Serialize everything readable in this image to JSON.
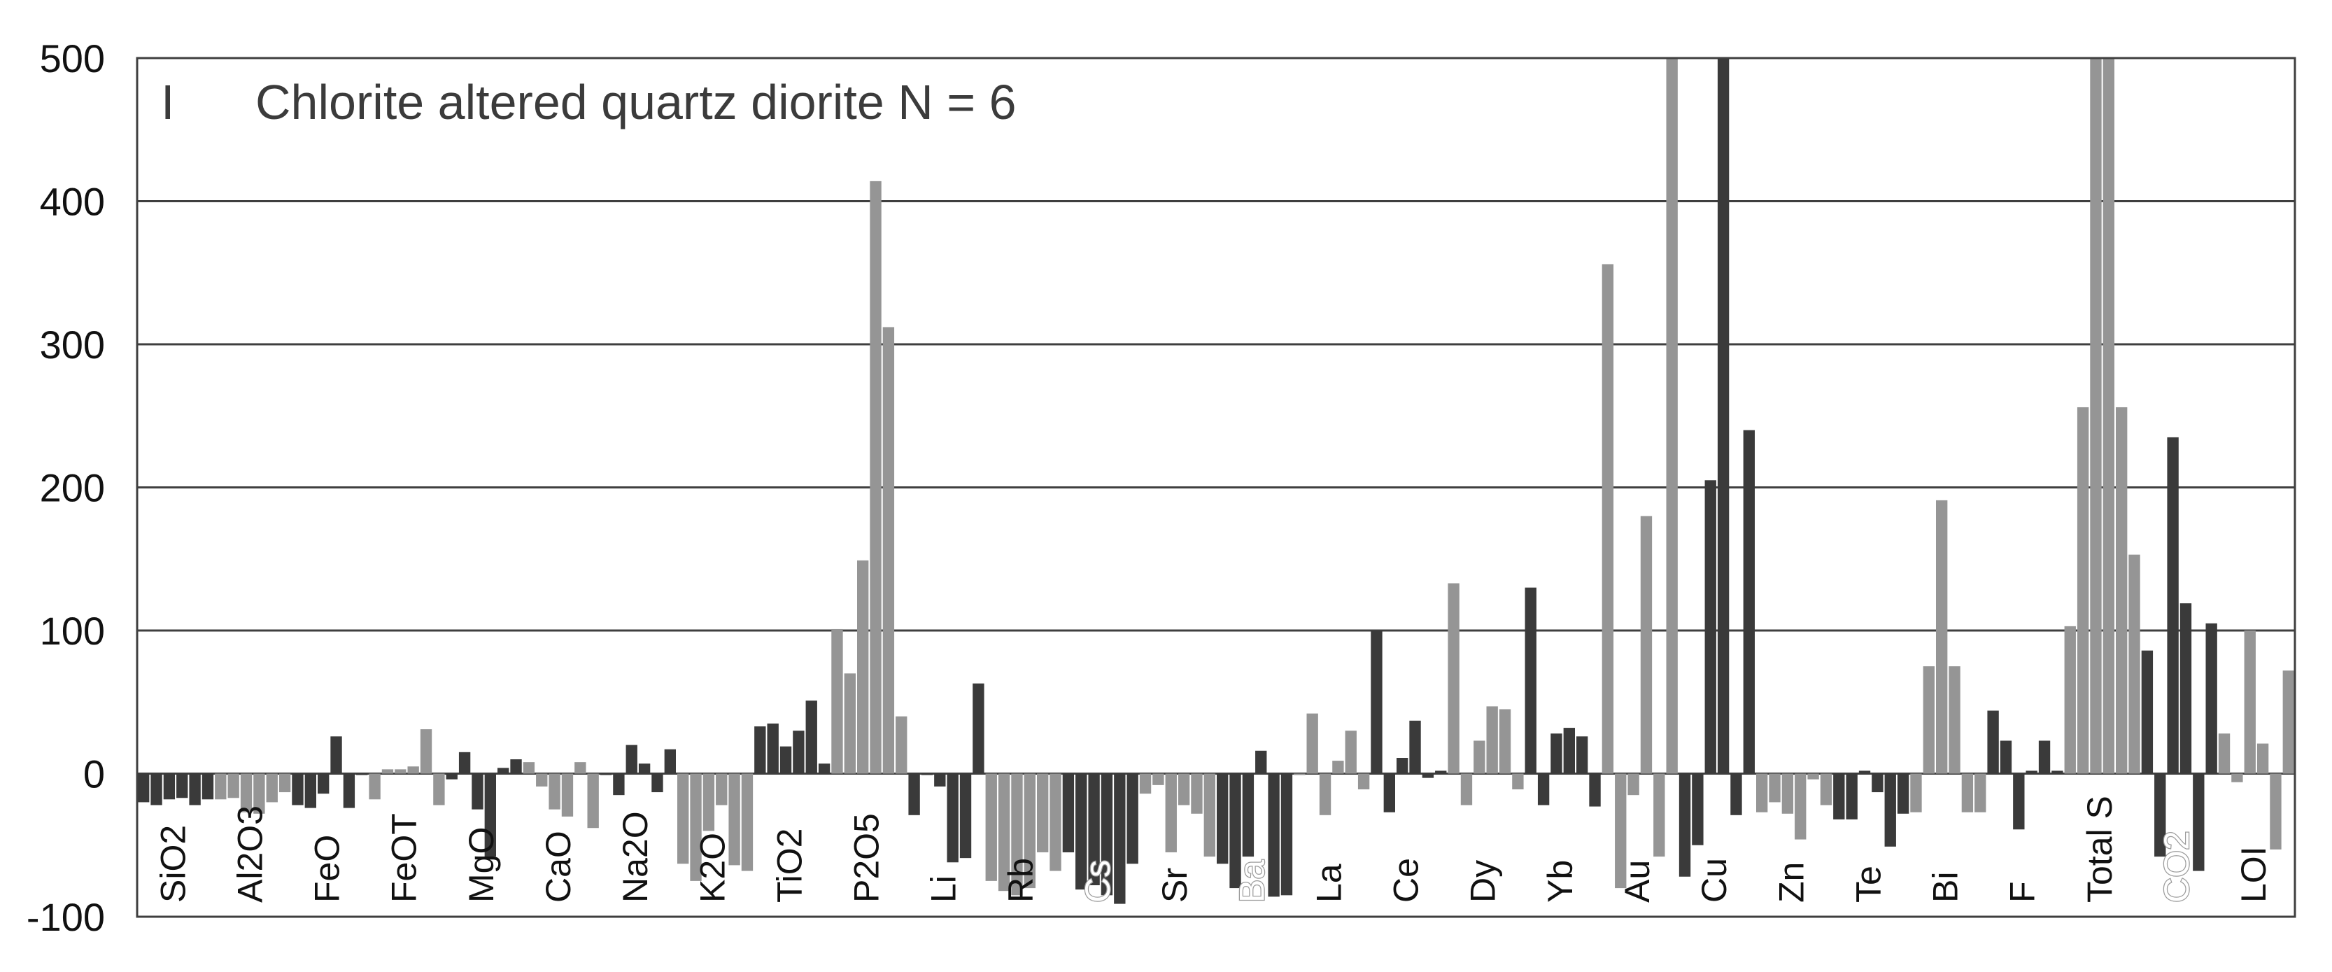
{
  "chart_data": {
    "type": "bar",
    "panel_letter": "I",
    "title": "Chlorite altered quartz diorite N = 6",
    "xlabel": "",
    "ylabel": "",
    "ylim": [
      -100,
      500
    ],
    "yticks": [
      500,
      400,
      300,
      200,
      100,
      0,
      -100
    ],
    "grid": true,
    "colors": {
      "dark": "#3a3a3a",
      "light": "#959595"
    },
    "bars_per_category": 6,
    "categories": [
      {
        "label": "SiO2",
        "color": "dark",
        "values": [
          -20,
          -22,
          -18,
          -17,
          -22,
          -18
        ]
      },
      {
        "label": "Al2O3",
        "color": "light",
        "values": [
          -18,
          -17,
          -27,
          -28,
          -20,
          -13
        ]
      },
      {
        "label": "FeO",
        "color": "dark",
        "values": [
          -22,
          -24,
          -14,
          26,
          -24,
          -1
        ]
      },
      {
        "label": "FeOT",
        "color": "light",
        "values": [
          -18,
          3,
          3,
          5,
          31,
          -22
        ]
      },
      {
        "label": "MgO",
        "color": "dark",
        "values": [
          -4,
          15,
          -25,
          -58,
          4,
          10
        ]
      },
      {
        "label": "CaO",
        "color": "light",
        "values": [
          8,
          -9,
          -25,
          -30,
          8,
          -38
        ]
      },
      {
        "label": "Na2O",
        "color": "dark",
        "values": [
          -1,
          -15,
          20,
          7,
          -13,
          17
        ]
      },
      {
        "label": "K2O",
        "color": "light",
        "values": [
          -63,
          -75,
          -40,
          -22,
          -64,
          -68
        ]
      },
      {
        "label": "TiO2",
        "color": "dark",
        "values": [
          33,
          35,
          19,
          30,
          51,
          7
        ]
      },
      {
        "label": "P2O5",
        "color": "light",
        "values": [
          101,
          70,
          149,
          414,
          312,
          40
        ]
      },
      {
        "label": "Li",
        "color": "dark",
        "values": [
          -29,
          -1,
          -9,
          -62,
          -59,
          63
        ]
      },
      {
        "label": "Rb",
        "color": "light",
        "values": [
          -75,
          -82,
          -85,
          -80,
          -55,
          -68
        ]
      },
      {
        "label": "Cs",
        "color": "dark",
        "label_style": "light",
        "values": [
          -55,
          -81,
          -78,
          -85,
          -91,
          -63
        ]
      },
      {
        "label": "Sr",
        "color": "light",
        "values": [
          -14,
          -8,
          -55,
          -22,
          -28,
          -58
        ]
      },
      {
        "label": "Ba",
        "color": "dark",
        "label_style": "light",
        "values": [
          -63,
          -80,
          -58,
          16,
          -86,
          -85
        ]
      },
      {
        "label": "La",
        "color": "light",
        "values": [
          -1,
          42,
          -29,
          9,
          30,
          -11
        ]
      },
      {
        "label": "Ce",
        "color": "dark",
        "values": [
          100,
          -27,
          11,
          37,
          -3,
          2
        ]
      },
      {
        "label": "Dy",
        "color": "light",
        "values": [
          133,
          -22,
          23,
          47,
          45,
          -11
        ]
      },
      {
        "label": "Yb",
        "color": "dark",
        "values": [
          130,
          -22,
          28,
          32,
          26,
          -23
        ]
      },
      {
        "label": "Au",
        "color": "light",
        "values": [
          356,
          -80,
          -15,
          180,
          -58,
          500
        ]
      },
      {
        "label": "Cu",
        "color": "dark",
        "values": [
          -72,
          -50,
          205,
          500,
          -29,
          240
        ]
      },
      {
        "label": "Zn",
        "color": "light",
        "values": [
          -27,
          -20,
          -28,
          -46,
          -4,
          -22
        ]
      },
      {
        "label": "Te",
        "color": "dark",
        "values": [
          -32,
          -32,
          2,
          -13,
          -51,
          -28
        ]
      },
      {
        "label": "Bi",
        "color": "light",
        "values": [
          -27,
          75,
          191,
          75,
          -27,
          -27
        ]
      },
      {
        "label": "F",
        "color": "dark",
        "values": [
          44,
          23,
          -39,
          2,
          23,
          2
        ]
      },
      {
        "label": "Total S",
        "color": "light",
        "values": [
          103,
          256,
          500,
          500,
          256,
          153
        ]
      },
      {
        "label": "CO2",
        "color": "dark",
        "label_style": "light",
        "values": [
          86,
          -58,
          235,
          119,
          -68,
          105
        ]
      },
      {
        "label": "LOI",
        "color": "light",
        "values": [
          28,
          -6,
          100,
          21,
          -53,
          72
        ]
      }
    ]
  }
}
